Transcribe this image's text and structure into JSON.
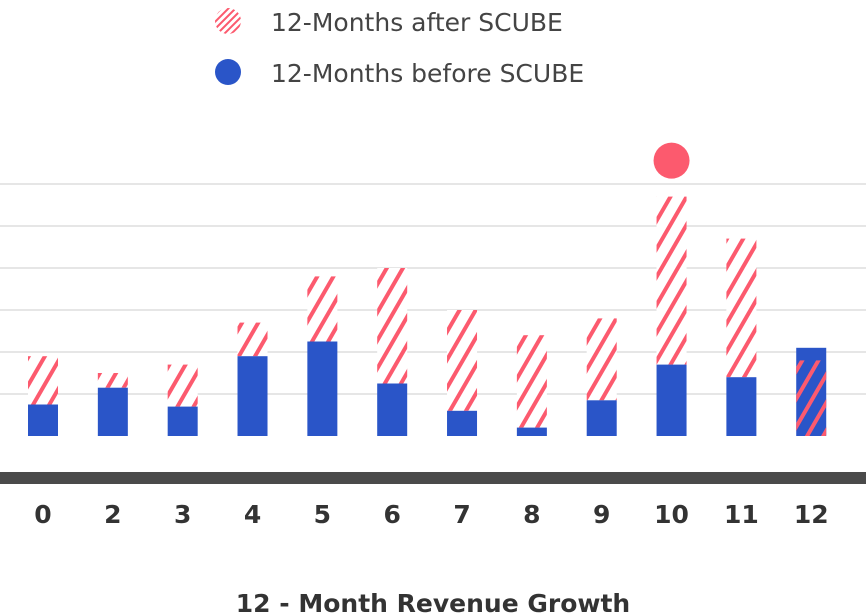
{
  "chart_data": {
    "type": "bar",
    "title": "",
    "xlabel": "12 - Month Revenue Growth",
    "ylabel": "",
    "categories": [
      "0",
      "2",
      "3",
      "4",
      "5",
      "6",
      "7",
      "8",
      "9",
      "10",
      "11",
      "12"
    ],
    "series": [
      {
        "name": "12-Months after SCUBE",
        "pattern": "hatched",
        "color": "#fc5a6e",
        "values": [
          1.9,
          1.5,
          1.7,
          2.7,
          3.8,
          4.0,
          3.0,
          2.4,
          2.8,
          5.7,
          4.7,
          1.8
        ]
      },
      {
        "name": "12-Months before SCUBE",
        "pattern": "solid",
        "color": "#2a55c8",
        "values": [
          0.75,
          1.15,
          0.7,
          1.9,
          2.25,
          1.25,
          0.6,
          0.2,
          0.85,
          1.7,
          1.4,
          2.1
        ]
      }
    ],
    "highlight_marker": {
      "category": "10",
      "color": "#fc5a6e"
    },
    "ylim": [
      0,
      7
    ],
    "grid": true,
    "legend_position": "top-center"
  },
  "colors": {
    "after": "#fc5a6e",
    "before": "#2a55c8",
    "axis": "#4a4a4a",
    "grid": "#e6e6e6"
  }
}
